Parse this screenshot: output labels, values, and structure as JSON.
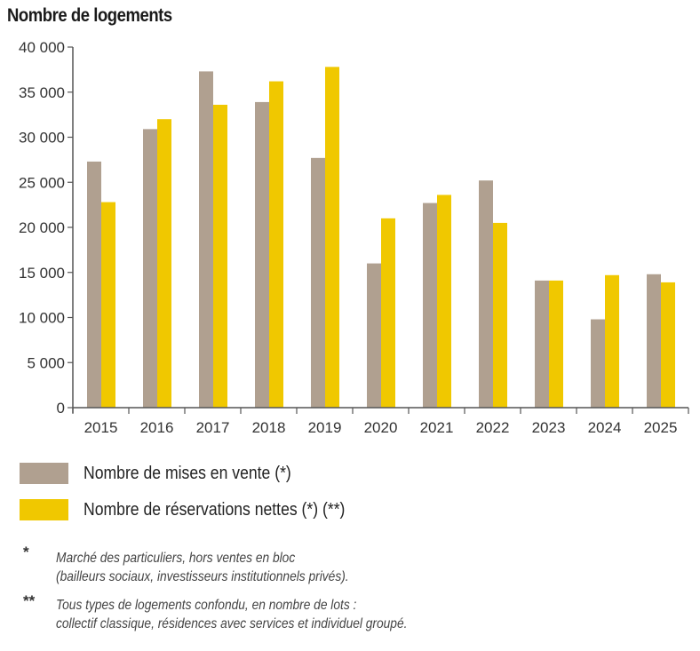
{
  "chart_data": {
    "type": "bar",
    "title": "Nombre de logements",
    "xlabel": "",
    "ylabel": "",
    "ylim": [
      0,
      40000
    ],
    "yticks": [
      "0",
      "5 000",
      "10 000",
      "15 000",
      "20 000",
      "25 000",
      "30 000",
      "35 000",
      "40 000"
    ],
    "ytick_values": [
      0,
      5000,
      10000,
      15000,
      20000,
      25000,
      30000,
      35000,
      40000
    ],
    "grid": false,
    "legend_position": "bottom",
    "categories": [
      "2015",
      "2016",
      "2017",
      "2018",
      "2019",
      "2020",
      "2021",
      "2022",
      "2023",
      "2024",
      "2025"
    ],
    "series": [
      {
        "name": "Nombre de mises en vente (*)",
        "color": "#b0a090",
        "values": [
          27300,
          30900,
          37300,
          33900,
          27700,
          16000,
          22700,
          25200,
          14100,
          9800,
          14800
        ]
      },
      {
        "name": "Nombre de réservations nettes (*) (**)",
        "color": "#f0c800",
        "values": [
          22800,
          32000,
          33600,
          36200,
          37800,
          21000,
          23600,
          20500,
          14100,
          14700,
          13900
        ]
      }
    ]
  },
  "footnotes": [
    {
      "mark": "*",
      "lines": [
        "Marché des particuliers, hors ventes en bloc",
        "(bailleurs sociaux, investisseurs institutionnels privés)."
      ]
    },
    {
      "mark": "**",
      "lines": [
        "Tous types de logements confondu, en nombre de lots :",
        "collectif classique, résidences avec services et individuel groupé."
      ]
    }
  ]
}
